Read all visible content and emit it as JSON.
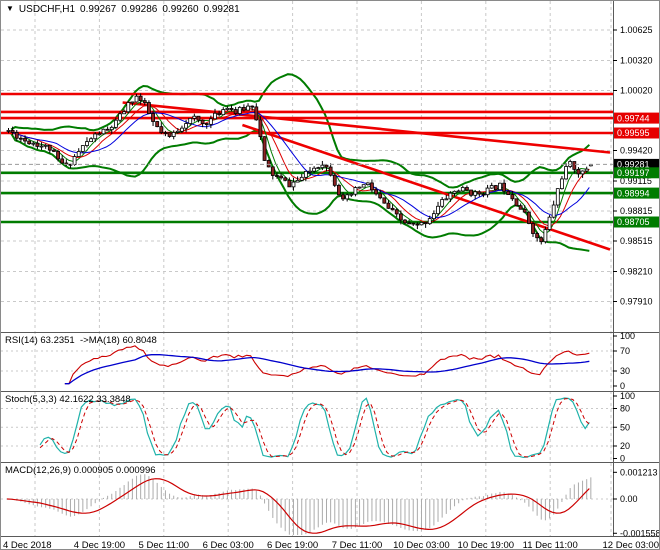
{
  "header": {
    "symbol_period": "USDCHF,H1",
    "open": "0.99267",
    "high": "0.99286",
    "low": "0.99260",
    "close": "0.99281"
  },
  "indicators": {
    "rsi": {
      "label": "RSI(14) 63.2351  ->MA(18) 60.8048",
      "period": 14,
      "ma_period": 18,
      "value": 63.2351,
      "ma_value": 60.8048,
      "scale_labels": [
        100,
        70,
        30,
        0
      ],
      "level_lines": [
        70,
        30
      ],
      "line_color": "#cc0000",
      "ma_color": "#0000cc"
    },
    "stoch": {
      "label": "Stoch(5,3,3) 42.1622 33.3848",
      "k_period": 5,
      "d_period": 3,
      "slowing": 3,
      "value_k": 42.1622,
      "value_d": 33.3848,
      "scale_labels": [
        100,
        80,
        50,
        20,
        0
      ],
      "level_lines": [
        80,
        50,
        20
      ],
      "k_color": "#1fb2aa",
      "d_color": "#cc0000"
    },
    "macd": {
      "label": "MACD(12,26,9) 0.000905 0.000996",
      "fast": 12,
      "slow": 26,
      "signal": 9,
      "value_main": 0.000905,
      "value_signal": 0.000996,
      "scale_labels": [
        "0.001213",
        "0.00",
        "-0.001558"
      ],
      "scale_values": [
        0.001213,
        0,
        -0.001558
      ],
      "histogram_color": "#ababab",
      "signal_color": "#cc0000"
    }
  },
  "chart_data": {
    "type": "candlestick",
    "symbol": "USDCHF",
    "timeframe": "H1",
    "current_bar": {
      "open": 0.99267,
      "high": 0.99286,
      "low": 0.9926,
      "close": 0.99281
    },
    "current_price": 0.99281,
    "price_axis": {
      "grid_labels": [
        1.00625,
        1.0032,
        1.0002,
        0.9942,
        0.99115,
        0.98815,
        0.98515,
        0.9821,
        0.9791
      ]
    },
    "time_axis": {
      "labels": [
        "4 Dec 2018",
        "4 Dec 19:00",
        "5 Dec 11:00",
        "6 Dec 03:00",
        "6 Dec 19:00",
        "7 Dec 11:00",
        "10 Dec 03:00",
        "10 Dec 19:00",
        "11 Dec 11:00",
        "12 Dec 03:00"
      ]
    },
    "resistance_levels": [
      {
        "price": 0.99985,
        "badge": false
      },
      {
        "price": 0.99806,
        "badge": false
      },
      {
        "price": 0.99744,
        "badge": true
      },
      {
        "price": 0.99595,
        "badge": true
      }
    ],
    "support_levels": [
      {
        "price": 0.99197,
        "badge": true
      },
      {
        "price": 0.98994,
        "badge": true
      },
      {
        "price": 0.98705,
        "badge": true
      }
    ],
    "trendlines": [
      {
        "bar1": 28,
        "price1": 0.999,
        "bar2": 146,
        "price2": 0.994
      },
      {
        "bar1": 57,
        "price1": 0.99675,
        "bar2": 146,
        "price2": 0.9843
      }
    ],
    "bollinger": {
      "period": 20,
      "deviation": 2,
      "color": "#007c00"
    },
    "moving_averages": [
      {
        "period": 5,
        "color": "#007c00"
      },
      {
        "period": 8,
        "color": "#dd0000"
      },
      {
        "period": 13,
        "color": "#0000dd"
      }
    ],
    "bars_total": 142,
    "price_waypoints": [
      [
        0,
        0.9962
      ],
      [
        2,
        0.9957
      ],
      [
        4,
        0.9952
      ],
      [
        6,
        0.995
      ],
      [
        8,
        0.9947
      ],
      [
        10,
        0.9944
      ],
      [
        12,
        0.9932
      ],
      [
        14,
        0.9926
      ],
      [
        16,
        0.9936
      ],
      [
        18,
        0.9946
      ],
      [
        20,
        0.9954
      ],
      [
        22,
        0.996
      ],
      [
        24,
        0.9962
      ],
      [
        26,
        0.997
      ],
      [
        28,
        0.9982
      ],
      [
        30,
        0.9993
      ],
      [
        31,
        0.9996
      ],
      [
        33,
        0.9987
      ],
      [
        35,
        0.997
      ],
      [
        37,
        0.9959
      ],
      [
        39,
        0.9955
      ],
      [
        41,
        0.9963
      ],
      [
        43,
        0.9971
      ],
      [
        45,
        0.9974
      ],
      [
        47,
        0.9969
      ],
      [
        49,
        0.9973
      ],
      [
        51,
        0.998
      ],
      [
        53,
        0.9987
      ],
      [
        55,
        0.998
      ],
      [
        57,
        0.9984
      ],
      [
        59,
        0.9988
      ],
      [
        60,
        0.9975
      ],
      [
        61,
        0.9955
      ],
      [
        62,
        0.993
      ],
      [
        64,
        0.9918
      ],
      [
        66,
        0.9913
      ],
      [
        68,
        0.9908
      ],
      [
        70,
        0.9912
      ],
      [
        72,
        0.9918
      ],
      [
        74,
        0.9925
      ],
      [
        76,
        0.993
      ],
      [
        78,
        0.992
      ],
      [
        80,
        0.99
      ],
      [
        81,
        0.9891
      ],
      [
        83,
        0.9898
      ],
      [
        85,
        0.9906
      ],
      [
        87,
        0.9908
      ],
      [
        89,
        0.9898
      ],
      [
        91,
        0.9888
      ],
      [
        93,
        0.988
      ],
      [
        95,
        0.9872
      ],
      [
        97,
        0.9868
      ],
      [
        99,
        0.9866
      ],
      [
        101,
        0.9871
      ],
      [
        103,
        0.988
      ],
      [
        105,
        0.9891
      ],
      [
        107,
        0.9899
      ],
      [
        109,
        0.9903
      ],
      [
        111,
        0.9902
      ],
      [
        113,
        0.9898
      ],
      [
        115,
        0.9901
      ],
      [
        117,
        0.9904
      ],
      [
        119,
        0.9907
      ],
      [
        121,
        0.9901
      ],
      [
        123,
        0.989
      ],
      [
        125,
        0.9878
      ],
      [
        127,
        0.9862
      ],
      [
        128,
        0.9853
      ],
      [
        129,
        0.9851
      ],
      [
        130,
        0.9862
      ],
      [
        131,
        0.9874
      ],
      [
        132,
        0.9888
      ],
      [
        133,
        0.9903
      ],
      [
        134,
        0.9916
      ],
      [
        135,
        0.9924
      ],
      [
        136,
        0.9928
      ],
      [
        137,
        0.9925
      ],
      [
        138,
        0.9921
      ],
      [
        139,
        0.9919
      ],
      [
        140,
        0.9924
      ],
      [
        141,
        0.99281
      ]
    ],
    "candle_colors": {
      "up_fill": "#ffffff",
      "down_fill": "#8e2323",
      "outline": "#000000"
    }
  },
  "colors": {
    "grid": "#c9c9c9",
    "panel_border": "#5a5a5a",
    "resistance": "#ee0000",
    "support": "#007c00",
    "trendline": "#ee0000",
    "badge_red": "#e60000",
    "badge_green": "#007c00",
    "badge_black": "#000000",
    "current_price_line": "#9a9a9a",
    "axis_text": "#000000"
  }
}
